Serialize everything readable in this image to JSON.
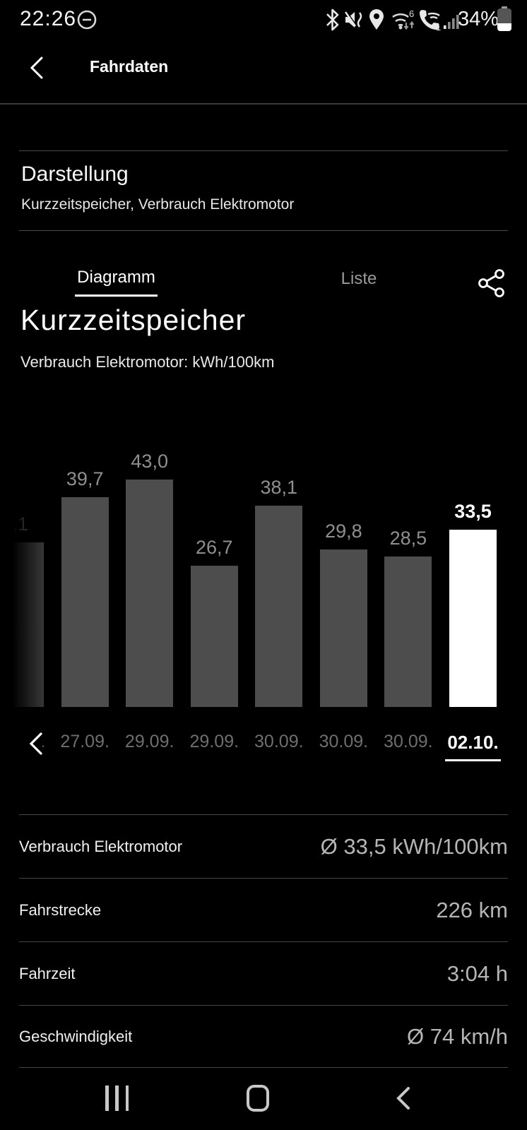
{
  "status_bar": {
    "time": "22:26",
    "battery_percent": "34%",
    "icons": [
      "do-not-disturb",
      "bluetooth",
      "sound-muted-vibrate",
      "location",
      "wifi-6",
      "wifi-calling-1",
      "signal-strength",
      "battery"
    ]
  },
  "header": {
    "title": "Fahrdaten"
  },
  "display_section": {
    "title": "Darstellung",
    "subtitle": "Kurzzeitspeicher, Verbrauch Elektromotor"
  },
  "tabs": {
    "diagram_label": "Diagramm",
    "list_label": "Liste",
    "active": "Diagramm"
  },
  "chart_section": {
    "title": "Kurzzeitspeicher",
    "subtitle": "Verbrauch Elektromotor: kWh/100km"
  },
  "chart_data": {
    "type": "bar",
    "title": "Kurzzeitspeicher",
    "ylabel": "Verbrauch Elektromotor kWh/100km",
    "categories": [
      ".",
      "27.09.",
      "29.09.",
      "29.09.",
      "30.09.",
      "30.09.",
      "30.09.",
      "02.10."
    ],
    "values": [
      31.1,
      39.7,
      43.0,
      26.7,
      38.1,
      29.8,
      28.5,
      33.5
    ],
    "value_labels": [
      ",1",
      "39,7",
      "43,0",
      "26,7",
      "38,1",
      "29,8",
      "28,5",
      "33,5"
    ],
    "selected_index": 7,
    "first_column_partially_scrolled_off": true,
    "bar_color": "#4d4d4d",
    "selected_bar_color": "#ffffff",
    "label_color": "#8f8f8f",
    "axis_label_color": "#6e6e6e",
    "ylim": [
      0,
      56
    ],
    "grid": false,
    "legend": "none"
  },
  "stats": [
    {
      "label": "Verbrauch Elektromotor",
      "value": "Ø 33,5 kWh/100km"
    },
    {
      "label": "Fahrstrecke",
      "value": "226 km"
    },
    {
      "label": "Fahrzeit",
      "value": "3:04 h"
    },
    {
      "label": "Geschwindigkeit",
      "value": "Ø 74 km/h"
    }
  ],
  "nav_bar": {
    "buttons": [
      "recents",
      "home",
      "back"
    ]
  }
}
